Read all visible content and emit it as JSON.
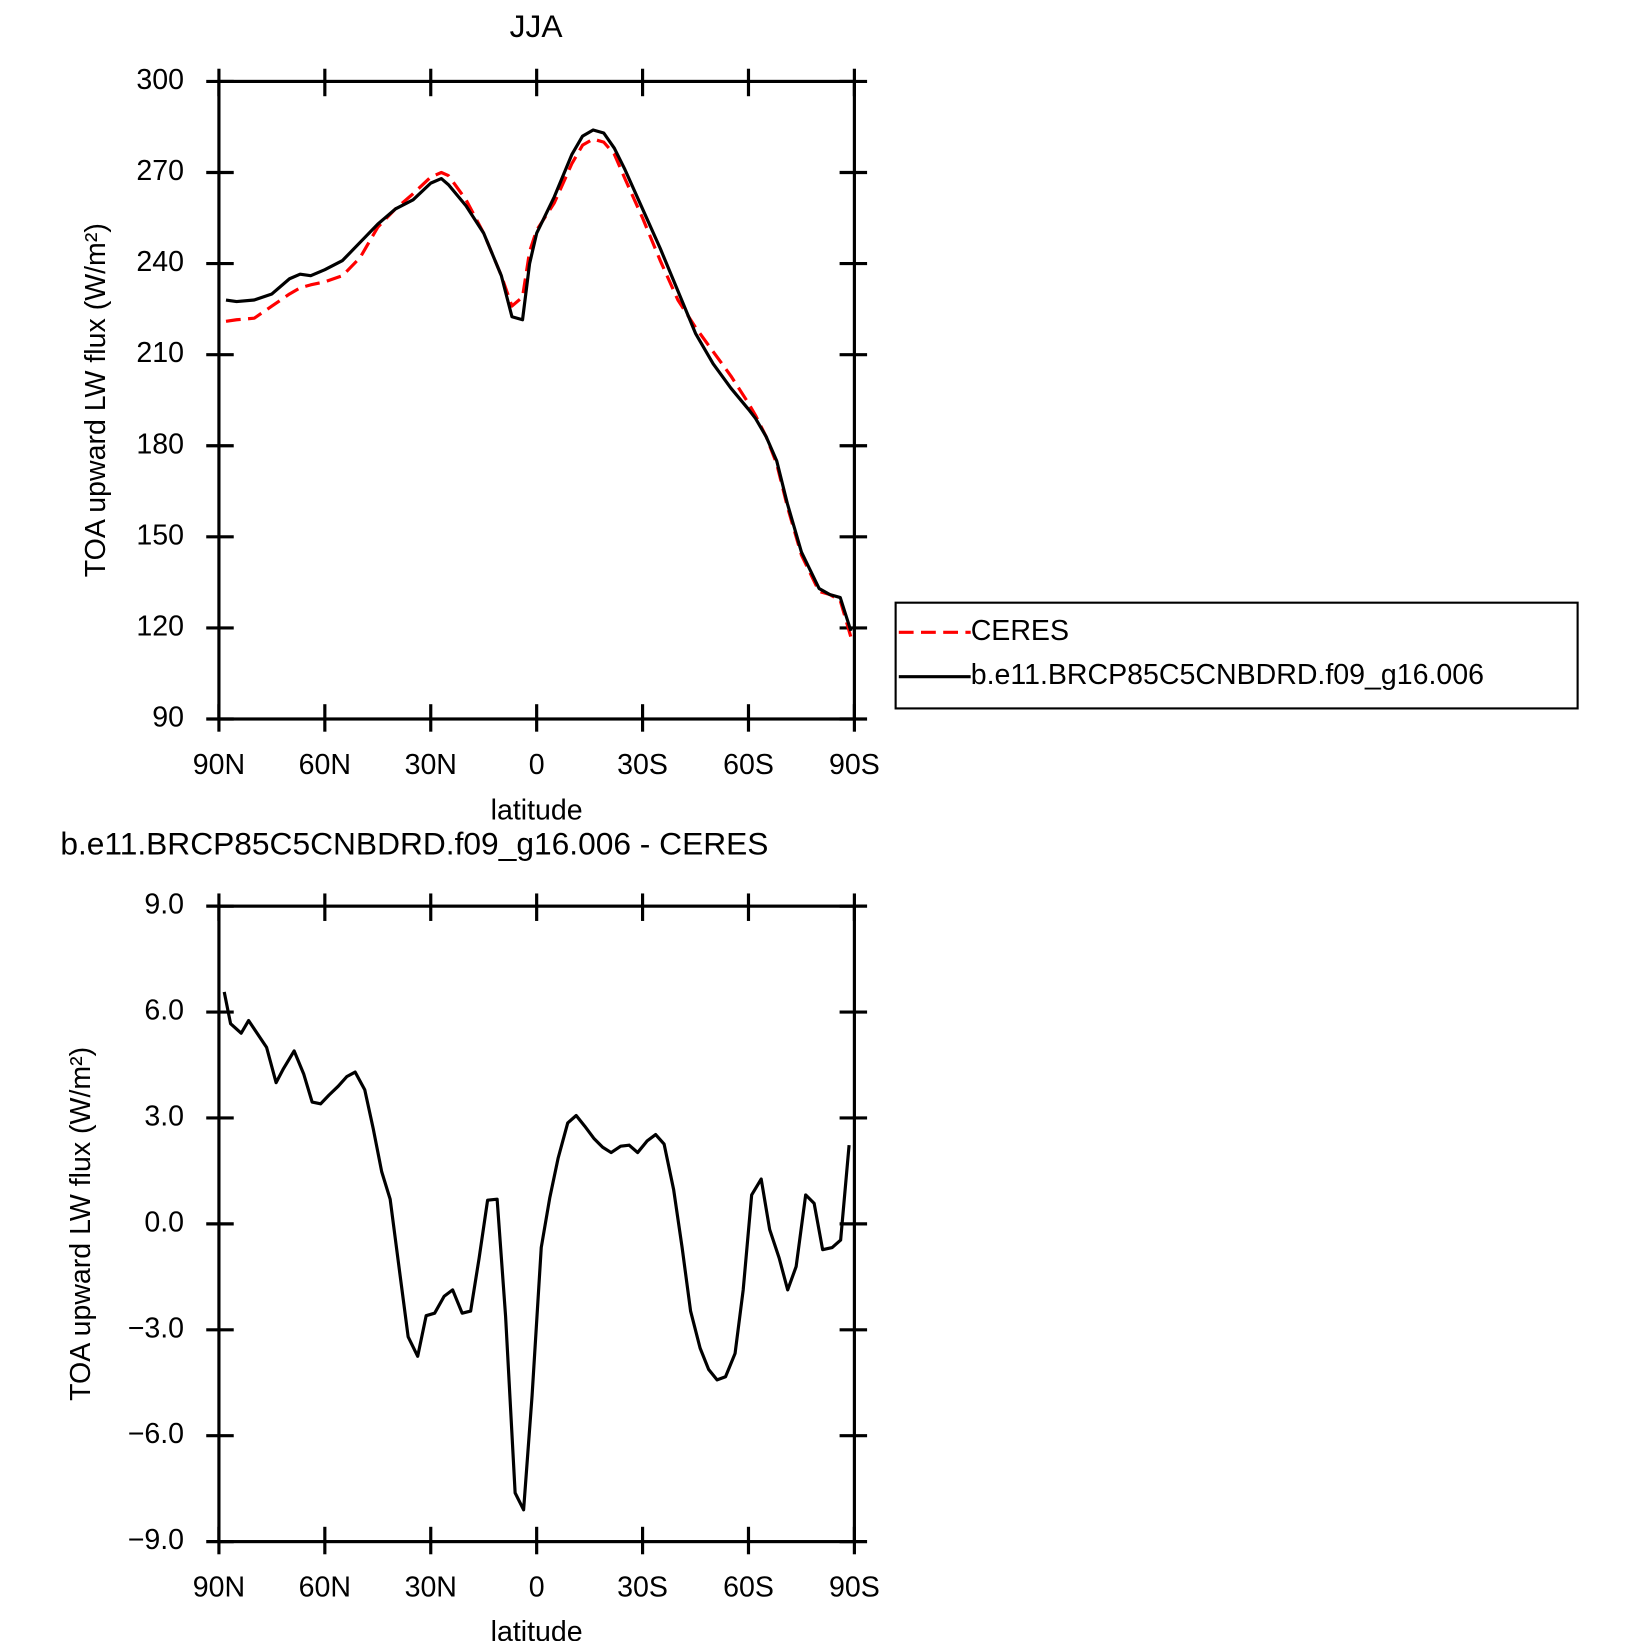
{
  "chart_data": [
    {
      "type": "line",
      "title": "JJA",
      "xlabel": "latitude",
      "ylabel": "TOA upward LW flux (W/m²)",
      "x": [
        88,
        85,
        80,
        75,
        70,
        67,
        64,
        60,
        55,
        50,
        45,
        40,
        35,
        30,
        27,
        25,
        20,
        15,
        10,
        7,
        4,
        2,
        0,
        -5,
        -10,
        -13,
        -16,
        -19,
        -22,
        -25,
        -30,
        -35,
        -40,
        -45,
        -50,
        -55,
        -60,
        -62,
        -65,
        -68,
        -71,
        -75,
        -80,
        -83,
        -86,
        -89
      ],
      "series": [
        {
          "name": "CERES",
          "color": "#ff0000",
          "style": "dashed",
          "values": [
            221,
            221.5,
            222,
            226,
            230,
            232,
            233,
            234,
            236,
            242,
            252,
            258,
            263,
            268.5,
            270,
            269,
            261,
            250,
            236,
            226,
            229,
            244,
            251,
            260,
            273,
            279,
            281,
            280,
            276,
            268,
            255,
            241,
            228,
            219,
            211,
            203,
            194,
            190,
            183,
            174,
            160,
            144,
            132,
            131,
            129,
            117
          ]
        },
        {
          "name": "b.e11.BRCP85C5CNBDRD.f09_g16.006",
          "color": "#000000",
          "style": "solid",
          "values": [
            228,
            227.5,
            228,
            230,
            235,
            236.5,
            236,
            238,
            241,
            247,
            253,
            258,
            261,
            266.5,
            268,
            266,
            259,
            250,
            236,
            222.5,
            221.5,
            240,
            250,
            262,
            276,
            282,
            284,
            283,
            278,
            271,
            258,
            245,
            231,
            217,
            207,
            199,
            192,
            189,
            183,
            175,
            161,
            145,
            133,
            131,
            130,
            119
          ]
        }
      ],
      "xlim": [
        90,
        -90
      ],
      "xticks": [
        {
          "value": 90,
          "label": "90N"
        },
        {
          "value": 60,
          "label": "60N"
        },
        {
          "value": 30,
          "label": "30N"
        },
        0,
        {
          "value": -30,
          "label": "30S"
        },
        {
          "value": -60,
          "label": "60S"
        },
        {
          "value": -90,
          "label": "90S"
        }
      ],
      "ylim": [
        90,
        300
      ],
      "yticks": [
        90,
        120,
        150,
        180,
        210,
        240,
        270,
        300
      ],
      "legend": "right"
    },
    {
      "type": "line",
      "title": "b.e11.BRCP85C5CNBDRD.f09_g16.006 - CERES",
      "xlabel": "latitude",
      "ylabel": "TOA upward LW flux (W/m²)",
      "x": [
        88.5,
        86.7,
        83.7,
        81.6,
        76.5,
        73.8,
        71.7,
        68.7,
        66.0,
        63.6,
        61.2,
        58.8,
        56.2,
        53.8,
        51.4,
        48.7,
        46.3,
        43.9,
        41.5,
        38.8,
        36.4,
        33.7,
        31.3,
        28.9,
        26.2,
        23.8,
        21.1,
        18.7,
        16.3,
        13.9,
        11.2,
        8.8,
        6.1,
        3.7,
        1.3,
        -1.3,
        -3.7,
        -6.1,
        -8.8,
        -11.2,
        -13.6,
        -16.3,
        -18.7,
        -21.1,
        -23.8,
        -26.2,
        -28.6,
        -31.3,
        -33.7,
        -36.1,
        -38.8,
        -41.2,
        -43.6,
        -46.3,
        -48.7,
        -51.1,
        -53.5,
        -56.2,
        -58.5,
        -60.9,
        -63.6,
        -66.0,
        -68.7,
        -71.1,
        -73.5,
        -76.2,
        -78.6,
        -81.0,
        -83.7,
        -86.1,
        -88.5
      ],
      "values": [
        6.57,
        5.67,
        5.4,
        5.76,
        5.0,
        4.0,
        4.4,
        4.9,
        4.25,
        3.45,
        3.4,
        3.65,
        3.9,
        4.17,
        4.3,
        3.8,
        2.7,
        1.48,
        0.7,
        -1.37,
        -3.2,
        -3.75,
        -2.6,
        -2.53,
        -2.05,
        -1.87,
        -2.53,
        -2.47,
        -0.97,
        0.67,
        0.7,
        -2.62,
        -7.62,
        -8.1,
        -4.87,
        -0.67,
        0.73,
        1.87,
        2.86,
        3.07,
        2.77,
        2.41,
        2.17,
        2.02,
        2.2,
        2.23,
        2.02,
        2.35,
        2.53,
        2.26,
        0.97,
        -0.67,
        -2.47,
        -3.52,
        -4.12,
        -4.42,
        -4.33,
        -3.67,
        -1.87,
        0.82,
        1.27,
        -0.16,
        -0.97,
        -1.87,
        -1.21,
        0.82,
        0.58,
        -0.73,
        -0.67,
        -0.46,
        2.23
      ],
      "color": "#000000",
      "xlim": [
        90,
        -90
      ],
      "xticks": [
        {
          "value": 90,
          "label": "90N"
        },
        {
          "value": 60,
          "label": "60N"
        },
        {
          "value": 30,
          "label": "30N"
        },
        0,
        {
          "value": -30,
          "label": "30S"
        },
        {
          "value": -60,
          "label": "60S"
        },
        {
          "value": -90,
          "label": "90S"
        }
      ],
      "ylim": [
        -9,
        9
      ],
      "yticks": [
        {
          "value": -9,
          "label": "−9.0"
        },
        {
          "value": -6,
          "label": "−6.0"
        },
        {
          "value": -3,
          "label": "−3.0"
        },
        {
          "value": 0,
          "label": "0.0"
        },
        {
          "value": 3,
          "label": "3.0"
        },
        {
          "value": 6,
          "label": "6.0"
        },
        {
          "value": 9,
          "label": "9.0"
        }
      ]
    }
  ]
}
